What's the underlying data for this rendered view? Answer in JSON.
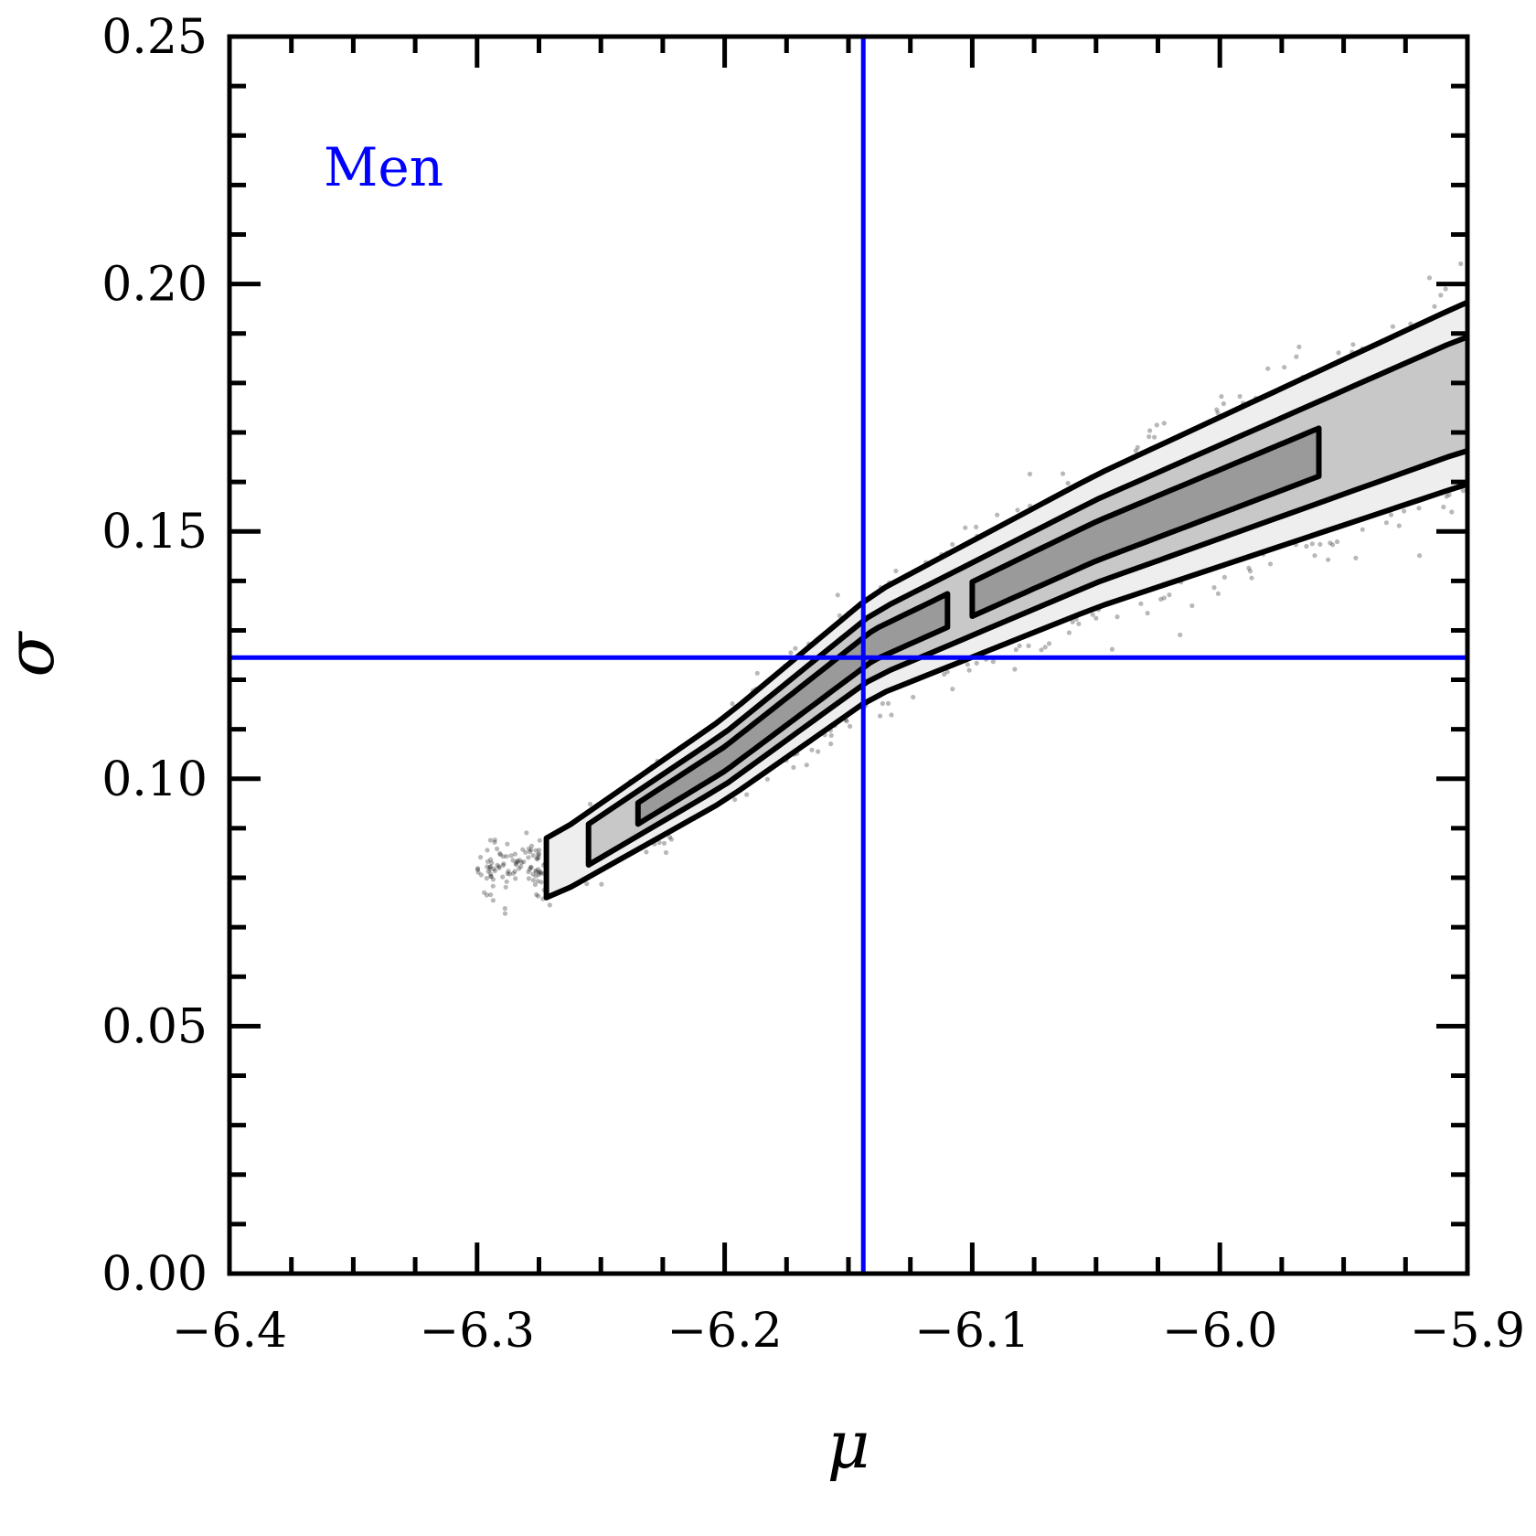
{
  "chart_data": {
    "type": "scatter",
    "title": "",
    "xlabel": "μ",
    "ylabel": "σ",
    "xlim": [
      -6.4,
      -5.9
    ],
    "ylim": [
      0.0,
      0.25
    ],
    "x_ticks": [
      -6.4,
      -6.3,
      -6.2,
      -6.1,
      -6.0,
      -5.9
    ],
    "x_tick_labels": [
      "−6.4",
      "−6.3",
      "−6.2",
      "−6.1",
      "−6.0",
      "−5.9"
    ],
    "y_ticks": [
      0.0,
      0.05,
      0.1,
      0.15,
      0.2,
      0.25
    ],
    "y_tick_labels": [
      "0.00",
      "0.05",
      "0.10",
      "0.15",
      "0.20",
      "0.25"
    ],
    "annotation": {
      "text": "Men",
      "color": "#0000ff"
    },
    "reference_lines": {
      "mu": -6.144,
      "sigma": 0.1245,
      "color": "#0000ff"
    },
    "posterior_ridge": [
      {
        "mu": -6.27,
        "sigma": 0.082
      },
      {
        "mu": -6.2,
        "sigma": 0.104
      },
      {
        "mu": -6.14,
        "sigma": 0.127
      },
      {
        "mu": -6.05,
        "sigma": 0.148
      },
      {
        "mu": -5.95,
        "sigma": 0.168
      },
      {
        "mu": -5.9,
        "sigma": 0.178
      }
    ],
    "contour_levels": [
      "outer",
      "middle",
      "inner"
    ],
    "grid": false
  }
}
